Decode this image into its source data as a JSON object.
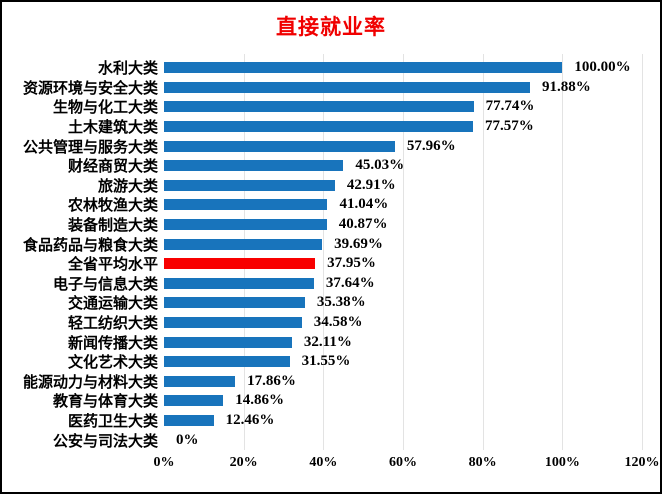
{
  "chart_data": {
    "type": "bar",
    "orientation": "horizontal",
    "title": "直接就业率",
    "categories": [
      "水利大类",
      "资源环境与安全大类",
      "生物与化工大类",
      "土木建筑大类",
      "公共管理与服务大类",
      "财经商贸大类",
      "旅游大类",
      "农林牧渔大类",
      "装备制造大类",
      "食品药品与粮食大类",
      "全省平均水平",
      "电子与信息大类",
      "交通运输大类",
      "轻工纺织大类",
      "新闻传播大类",
      "文化艺术大类",
      "能源动力与材料大类",
      "教育与体育大类",
      "医药卫生大类",
      "公安与司法大类"
    ],
    "values": [
      100.0,
      91.88,
      77.74,
      77.57,
      57.96,
      45.03,
      42.91,
      41.04,
      40.87,
      39.69,
      37.95,
      37.64,
      35.38,
      34.58,
      32.11,
      31.55,
      17.86,
      14.86,
      12.46,
      0
    ],
    "value_labels": [
      "100.00%",
      "91.88%",
      "77.74%",
      "77.57%",
      "57.96%",
      "45.03%",
      "42.91%",
      "41.04%",
      "40.87%",
      "39.69%",
      "37.95%",
      "37.64%",
      "35.38%",
      "34.58%",
      "32.11%",
      "31.55%",
      "17.86%",
      "14.86%",
      "12.46%",
      "0%"
    ],
    "highlight_category": "全省平均水平",
    "highlight_index": 10,
    "x_ticks": [
      "0%",
      "20%",
      "40%",
      "60%",
      "80%",
      "100%",
      "120%"
    ],
    "xlim": [
      0,
      120
    ],
    "xlabel": "",
    "ylabel": "",
    "legend": "none",
    "grid": "vertical",
    "colors": {
      "bar": "#1874BC",
      "highlight_bar": "#F80000",
      "title": "#F00000",
      "gridline": "#E3E3E3",
      "text": "#000000",
      "background": "#FFFFFF",
      "border": "#000000"
    }
  }
}
